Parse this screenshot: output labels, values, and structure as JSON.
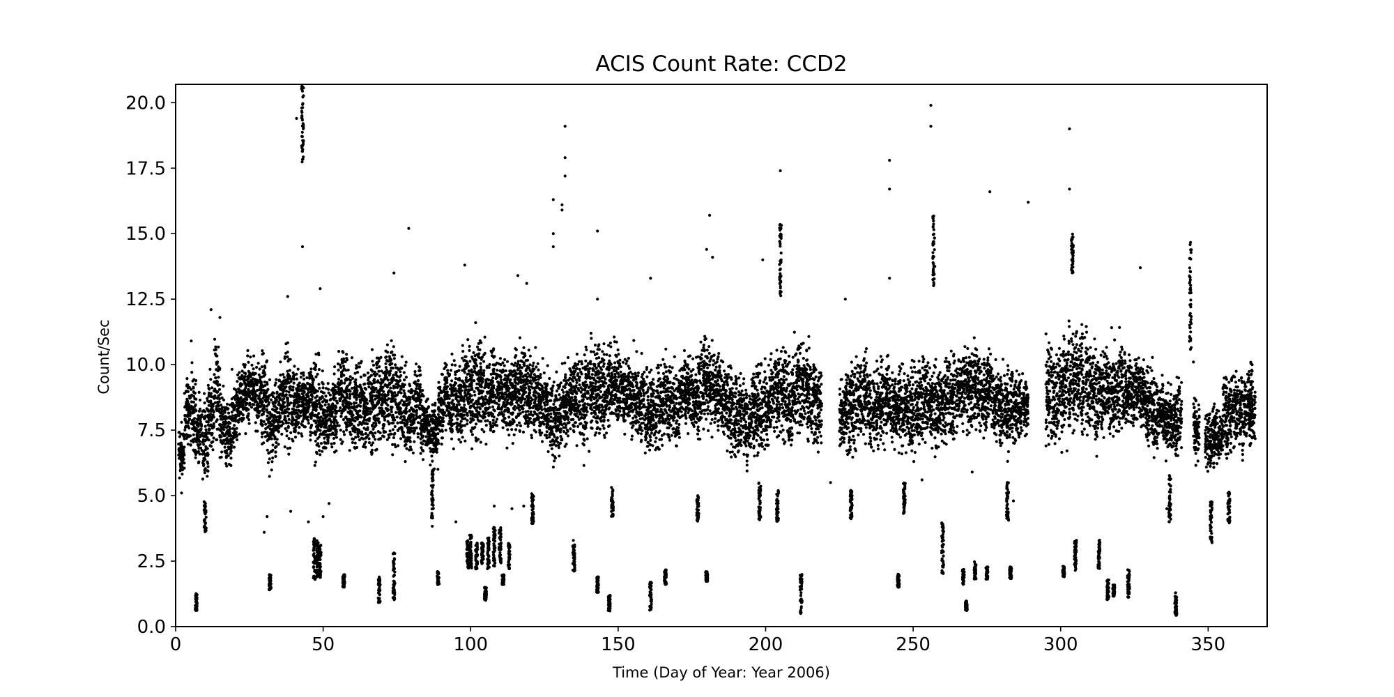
{
  "chart_data": {
    "type": "scatter",
    "title": "ACIS Count Rate: CCD2",
    "xlabel": "Time (Day of Year: Year 2006)",
    "ylabel": "Count/Sec",
    "xlim": [
      0,
      370
    ],
    "ylim": [
      0,
      20.7
    ],
    "xticks": [
      "0",
      "50",
      "100",
      "150",
      "200",
      "250",
      "300",
      "350"
    ],
    "yticks": [
      "0.0",
      "2.5",
      "5.0",
      "7.5",
      "10.0",
      "12.5",
      "15.0",
      "17.5",
      "20.0"
    ],
    "grid": false,
    "legend": "none",
    "marker_color": "#000000",
    "main_band": [
      [
        2,
        5.5,
        7.9
      ],
      [
        4,
        6.5,
        9.8
      ],
      [
        6,
        5.5,
        11.0
      ],
      [
        8,
        5.8,
        9.0
      ],
      [
        10,
        5.0,
        9.5
      ],
      [
        12,
        6.0,
        10.5
      ],
      [
        14,
        6.5,
        11.8
      ],
      [
        16,
        6.0,
        9.5
      ],
      [
        18,
        5.5,
        9.0
      ],
      [
        20,
        6.5,
        10.0
      ],
      [
        22,
        7.0,
        10.5
      ],
      [
        24,
        7.0,
        11.0
      ],
      [
        26,
        7.5,
        10.5
      ],
      [
        28,
        7.0,
        10.5
      ],
      [
        30,
        6.0,
        11.0
      ],
      [
        32,
        5.5,
        10.0
      ],
      [
        34,
        6.0,
        10.0
      ],
      [
        36,
        6.5,
        10.5
      ],
      [
        38,
        6.0,
        11.5
      ],
      [
        40,
        6.5,
        10.5
      ],
      [
        42,
        6.5,
        10.5
      ],
      [
        44,
        7.0,
        10.5
      ],
      [
        46,
        7.0,
        10.5
      ],
      [
        48,
        5.5,
        11.0
      ],
      [
        50,
        6.0,
        10.0
      ],
      [
        52,
        6.0,
        10.0
      ],
      [
        54,
        6.0,
        10.5
      ],
      [
        56,
        6.5,
        11.5
      ],
      [
        58,
        6.5,
        11.0
      ],
      [
        60,
        6.0,
        10.5
      ],
      [
        62,
        6.0,
        11.0
      ],
      [
        64,
        5.8,
        10.5
      ],
      [
        66,
        6.0,
        11.0
      ],
      [
        68,
        6.2,
        11.2
      ],
      [
        70,
        6.2,
        11.0
      ],
      [
        72,
        6.5,
        11.5
      ],
      [
        74,
        6.0,
        12.0
      ],
      [
        76,
        6.0,
        11.0
      ],
      [
        78,
        5.8,
        10.5
      ],
      [
        80,
        6.0,
        10.0
      ],
      [
        82,
        6.5,
        11.0
      ],
      [
        84,
        6.0,
        9.5
      ],
      [
        86,
        6.0,
        9.0
      ],
      [
        88,
        5.5,
        9.5
      ],
      [
        90,
        6.5,
        10.0
      ],
      [
        92,
        7.0,
        10.5
      ],
      [
        94,
        6.5,
        11.0
      ],
      [
        96,
        6.5,
        10.5
      ],
      [
        98,
        6.5,
        11.5
      ],
      [
        100,
        6.0,
        11.5
      ],
      [
        102,
        6.0,
        12.0
      ],
      [
        104,
        6.5,
        11.5
      ],
      [
        106,
        6.5,
        11.0
      ],
      [
        108,
        6.8,
        11.2
      ],
      [
        110,
        7.0,
        11.0
      ],
      [
        112,
        6.5,
        11.0
      ],
      [
        114,
        6.5,
        11.0
      ],
      [
        116,
        6.5,
        11.5
      ],
      [
        118,
        7.0,
        11.5
      ],
      [
        120,
        6.5,
        11.0
      ],
      [
        122,
        6.5,
        11.0
      ],
      [
        124,
        6.5,
        10.5
      ],
      [
        126,
        6.0,
        10.5
      ],
      [
        128,
        5.8,
        10.0
      ],
      [
        130,
        6.0,
        10.0
      ],
      [
        132,
        6.5,
        10.5
      ],
      [
        134,
        7.0,
        10.5
      ],
      [
        136,
        6.5,
        11.0
      ],
      [
        138,
        6.0,
        11.0
      ],
      [
        140,
        6.5,
        11.5
      ],
      [
        142,
        6.5,
        11.5
      ],
      [
        144,
        6.5,
        11.5
      ],
      [
        146,
        6.5,
        11.2
      ],
      [
        148,
        7.0,
        11.5
      ],
      [
        150,
        7.0,
        11.5
      ],
      [
        152,
        7.0,
        11.0
      ],
      [
        154,
        6.5,
        11.0
      ],
      [
        156,
        6.5,
        11.0
      ],
      [
        158,
        6.5,
        10.5
      ],
      [
        160,
        6.0,
        10.5
      ],
      [
        162,
        6.0,
        10.5
      ],
      [
        164,
        6.2,
        11.0
      ],
      [
        166,
        6.5,
        11.0
      ],
      [
        168,
        6.5,
        10.5
      ],
      [
        170,
        6.5,
        10.5
      ],
      [
        172,
        7.0,
        11.0
      ],
      [
        174,
        7.0,
        11.0
      ],
      [
        176,
        6.5,
        10.5
      ],
      [
        178,
        6.5,
        11.5
      ],
      [
        180,
        7.0,
        11.5
      ],
      [
        182,
        7.0,
        11.5
      ],
      [
        184,
        7.0,
        11.0
      ],
      [
        186,
        6.5,
        10.5
      ],
      [
        188,
        6.0,
        10.5
      ],
      [
        190,
        5.8,
        10.5
      ],
      [
        192,
        5.5,
        10.5
      ],
      [
        194,
        5.8,
        10.0
      ],
      [
        196,
        6.0,
        10.5
      ],
      [
        198,
        6.0,
        10.5
      ],
      [
        200,
        6.0,
        10.5
      ],
      [
        202,
        6.5,
        11.0
      ],
      [
        204,
        6.5,
        11.5
      ],
      [
        206,
        6.5,
        11.5
      ],
      [
        208,
        6.0,
        11.0
      ],
      [
        210,
        6.5,
        11.5
      ],
      [
        212,
        6.5,
        11.8
      ],
      [
        214,
        6.5,
        11.5
      ],
      [
        216,
        6.5,
        11.0
      ],
      [
        218,
        6.2,
        10.5
      ],
      [
        226,
        6.2,
        10.0
      ],
      [
        228,
        6.0,
        10.5
      ],
      [
        230,
        6.0,
        11.0
      ],
      [
        232,
        6.5,
        11.0
      ],
      [
        234,
        6.5,
        11.0
      ],
      [
        236,
        6.0,
        10.5
      ],
      [
        238,
        6.0,
        10.8
      ],
      [
        240,
        6.5,
        11.0
      ],
      [
        242,
        6.5,
        10.8
      ],
      [
        244,
        6.2,
        10.5
      ],
      [
        246,
        6.0,
        10.5
      ],
      [
        248,
        6.0,
        10.5
      ],
      [
        250,
        6.0,
        10.8
      ],
      [
        252,
        6.2,
        11.0
      ],
      [
        254,
        6.5,
        11.0
      ],
      [
        256,
        6.2,
        10.5
      ],
      [
        258,
        6.0,
        10.5
      ],
      [
        260,
        6.2,
        10.5
      ],
      [
        262,
        6.5,
        11.0
      ],
      [
        264,
        6.5,
        11.0
      ],
      [
        266,
        6.8,
        11.2
      ],
      [
        268,
        7.0,
        11.5
      ],
      [
        270,
        6.5,
        11.5
      ],
      [
        272,
        6.5,
        11.5
      ],
      [
        274,
        6.8,
        11.0
      ],
      [
        276,
        7.0,
        11.0
      ],
      [
        278,
        6.5,
        10.5
      ],
      [
        280,
        6.0,
        10.5
      ],
      [
        282,
        6.0,
        10.5
      ],
      [
        284,
        6.5,
        10.5
      ],
      [
        286,
        6.5,
        10.0
      ],
      [
        288,
        7.0,
        10.0
      ],
      [
        296,
        6.5,
        11.5
      ],
      [
        298,
        6.0,
        11.0
      ],
      [
        300,
        6.5,
        11.5
      ],
      [
        302,
        6.5,
        12.0
      ],
      [
        304,
        6.5,
        12.0
      ],
      [
        306,
        7.0,
        12.0
      ],
      [
        308,
        6.5,
        12.0
      ],
      [
        310,
        6.5,
        12.0
      ],
      [
        312,
        6.0,
        11.8
      ],
      [
        314,
        6.5,
        11.5
      ],
      [
        316,
        6.5,
        11.5
      ],
      [
        318,
        6.5,
        11.5
      ],
      [
        320,
        6.8,
        11.5
      ],
      [
        322,
        7.0,
        11.0
      ],
      [
        324,
        7.0,
        11.0
      ],
      [
        326,
        7.5,
        11.0
      ],
      [
        328,
        7.0,
        10.5
      ],
      [
        330,
        6.5,
        10.5
      ],
      [
        332,
        6.0,
        10.5
      ],
      [
        334,
        6.5,
        10.0
      ],
      [
        336,
        6.0,
        9.5
      ],
      [
        338,
        5.8,
        9.5
      ],
      [
        340,
        6.0,
        10.0
      ],
      [
        346,
        6.0,
        9.0
      ],
      [
        350,
        5.5,
        9.0
      ],
      [
        352,
        5.5,
        9.0
      ],
      [
        354,
        5.8,
        8.5
      ],
      [
        356,
        6.0,
        10.0
      ],
      [
        358,
        6.0,
        10.5
      ],
      [
        360,
        6.0,
        10.5
      ],
      [
        362,
        6.2,
        10.5
      ],
      [
        364,
        6.5,
        10.5
      ],
      [
        365,
        6.5,
        10.0
      ]
    ],
    "dense_columns": [
      [
        43,
        17.7,
        20.7
      ],
      [
        47,
        1.8,
        3.4
      ],
      [
        48,
        1.8,
        3.3
      ],
      [
        49,
        1.8,
        3.2
      ],
      [
        57,
        1.5,
        2.0
      ],
      [
        32,
        1.4,
        2.0
      ],
      [
        7,
        0.6,
        1.3
      ],
      [
        10,
        3.6,
        4.8
      ],
      [
        69,
        0.9,
        1.9
      ],
      [
        74,
        1.0,
        2.9
      ],
      [
        87,
        3.8,
        6.0
      ],
      [
        89,
        1.6,
        2.1
      ],
      [
        99,
        2.2,
        3.4
      ],
      [
        100,
        2.2,
        3.5
      ],
      [
        102,
        2.2,
        3.2
      ],
      [
        104,
        2.4,
        3.2
      ],
      [
        105,
        1.0,
        1.5
      ],
      [
        106,
        2.2,
        3.4
      ],
      [
        108,
        2.2,
        3.8
      ],
      [
        110,
        2.4,
        3.8
      ],
      [
        111,
        1.6,
        2.0
      ],
      [
        113,
        2.2,
        3.2
      ],
      [
        121,
        3.9,
        5.1
      ],
      [
        135,
        2.1,
        3.3
      ],
      [
        143,
        1.3,
        1.9
      ],
      [
        147,
        0.6,
        1.2
      ],
      [
        148,
        4.2,
        5.4
      ],
      [
        161,
        0.6,
        1.7
      ],
      [
        166,
        1.6,
        2.2
      ],
      [
        177,
        4.0,
        5.0
      ],
      [
        180,
        1.7,
        2.1
      ],
      [
        198,
        4.0,
        5.5
      ],
      [
        204,
        4.0,
        5.2
      ],
      [
        205,
        12.5,
        15.5
      ],
      [
        212,
        0.5,
        2.0
      ],
      [
        229,
        4.0,
        5.2
      ],
      [
        245,
        1.5,
        2.0
      ],
      [
        247,
        4.3,
        5.5
      ],
      [
        257,
        13.0,
        15.7
      ],
      [
        260,
        2.0,
        4.0
      ],
      [
        267,
        1.6,
        2.2
      ],
      [
        268,
        0.6,
        1.0
      ],
      [
        271,
        1.8,
        2.5
      ],
      [
        275,
        1.8,
        2.3
      ],
      [
        282,
        4.0,
        5.5
      ],
      [
        283,
        1.8,
        2.3
      ],
      [
        301,
        1.9,
        2.3
      ],
      [
        304,
        13.5,
        15.0
      ],
      [
        305,
        2.1,
        3.3
      ],
      [
        313,
        2.2,
        3.3
      ],
      [
        316,
        1.0,
        1.8
      ],
      [
        318,
        1.1,
        1.6
      ],
      [
        323,
        1.1,
        2.2
      ],
      [
        337,
        4.0,
        5.8
      ],
      [
        339,
        0.4,
        1.3
      ],
      [
        344,
        10.5,
        14.8
      ],
      [
        351,
        3.2,
        4.8
      ],
      [
        357,
        3.9,
        5.2
      ]
    ],
    "outliers": [
      [
        41,
        19.4
      ],
      [
        43,
        14.5
      ],
      [
        79,
        15.2
      ],
      [
        128,
        14.5
      ],
      [
        128,
        15.0
      ],
      [
        128,
        16.3
      ],
      [
        131,
        15.9
      ],
      [
        131,
        16.1
      ],
      [
        132,
        17.2
      ],
      [
        132,
        17.9
      ],
      [
        132,
        19.1
      ],
      [
        143,
        15.1
      ],
      [
        180,
        14.4
      ],
      [
        182,
        14.1
      ],
      [
        181,
        15.7
      ],
      [
        199,
        14.0
      ],
      [
        205,
        17.4
      ],
      [
        242,
        16.7
      ],
      [
        242,
        17.8
      ],
      [
        256,
        19.1
      ],
      [
        256,
        19.9
      ],
      [
        276,
        16.6
      ],
      [
        289,
        16.2
      ],
      [
        303,
        16.7
      ],
      [
        303,
        19.0
      ],
      [
        74,
        13.5
      ],
      [
        98,
        13.8
      ],
      [
        327,
        13.7
      ],
      [
        38,
        12.6
      ],
      [
        49,
        12.9
      ],
      [
        12,
        12.1
      ],
      [
        15,
        11.8
      ],
      [
        161,
        13.3
      ],
      [
        116,
        13.4
      ],
      [
        119,
        13.1
      ],
      [
        143,
        12.5
      ],
      [
        227,
        12.5
      ],
      [
        242,
        13.3
      ],
      [
        52,
        4.7
      ],
      [
        118,
        4.6
      ],
      [
        108,
        4.6
      ],
      [
        114,
        4.5
      ],
      [
        50,
        4.2
      ],
      [
        39,
        4.4
      ],
      [
        45,
        4.0
      ],
      [
        30,
        3.6
      ],
      [
        31,
        4.2
      ],
      [
        95,
        4.0
      ],
      [
        222,
        5.5
      ],
      [
        253,
        5.6
      ],
      [
        2,
        5.1
      ],
      [
        2,
        7.8
      ],
      [
        284,
        4.8
      ],
      [
        336,
        4.5
      ],
      [
        270,
        5.9
      ],
      [
        345,
        10.1
      ]
    ]
  }
}
